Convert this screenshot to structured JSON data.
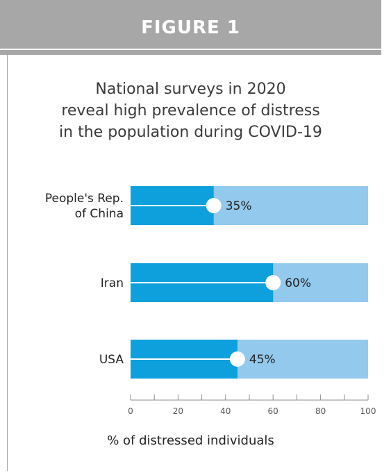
{
  "header": {
    "label": "FIGURE 1"
  },
  "chart_data": {
    "type": "bar",
    "orientation": "horizontal",
    "stacked_to": 100,
    "title_lines": [
      "National surveys in 2020",
      "reveal high prevalence of distress",
      "in the population during COVID-19"
    ],
    "categories": [
      [
        "People's Rep.",
        "of China"
      ],
      [
        "Iran"
      ],
      [
        "USA"
      ]
    ],
    "values": [
      35,
      60,
      45
    ],
    "value_labels": [
      "35%",
      "60%",
      "45%"
    ],
    "xlabel": "% of distressed individuals",
    "xlim": [
      0,
      100
    ],
    "xticks": [
      0,
      20,
      40,
      60,
      80,
      100
    ],
    "grid": false,
    "colors": {
      "value_bar": "#0ea0dc",
      "remainder_bar": "#93c9ec",
      "marker": "#ffffff",
      "axis": "#8c8c8c",
      "tick_label": "#555555",
      "category_label": "#222222"
    }
  }
}
